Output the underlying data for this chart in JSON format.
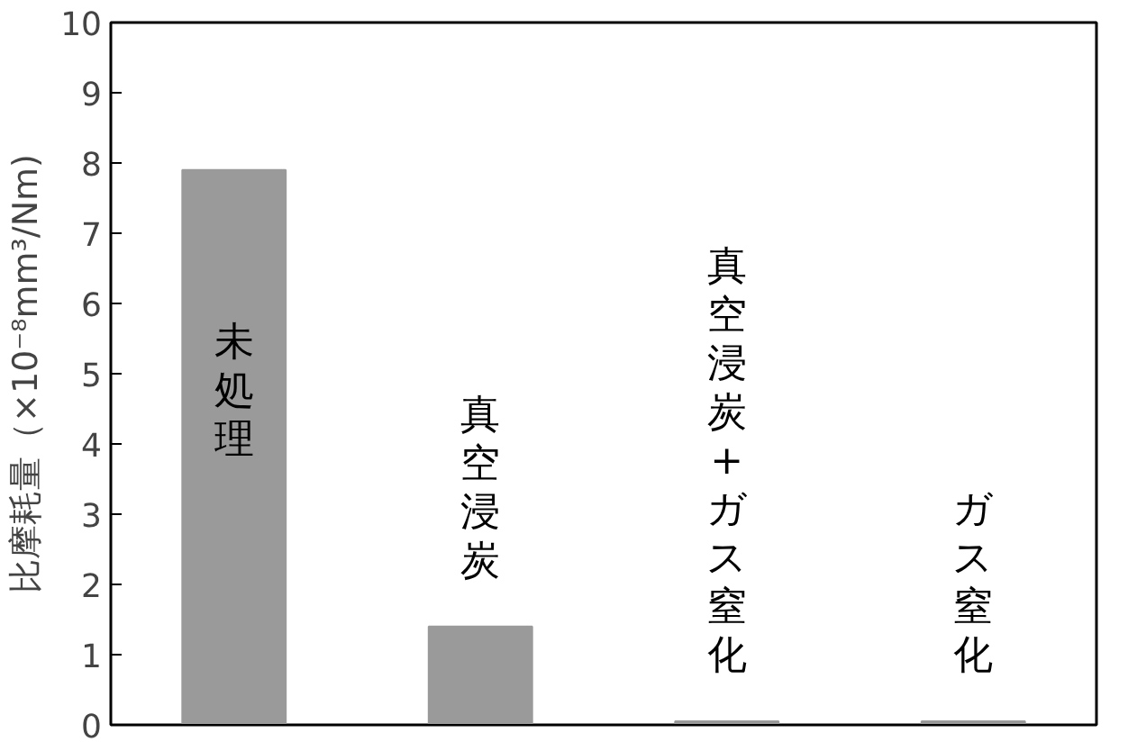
{
  "chart_data": {
    "type": "bar",
    "ylabel": "比摩耗量（×10⁻⁸mm³/Nm)",
    "categories": [
      null,
      null,
      null,
      null
    ],
    "values": [
      7.9,
      1.4,
      0.05,
      0.05
    ],
    "annotations": [
      "未処理",
      "真空浸炭",
      "真空浸炭+ガス窒化",
      "ガス窒化"
    ],
    "color": "#9a9a9a",
    "ylim": [
      0,
      10
    ],
    "yticks": [
      0,
      1,
      2,
      3,
      4,
      5,
      6,
      7,
      8,
      9,
      10
    ],
    "grid": false,
    "tick_labels": "y"
  }
}
